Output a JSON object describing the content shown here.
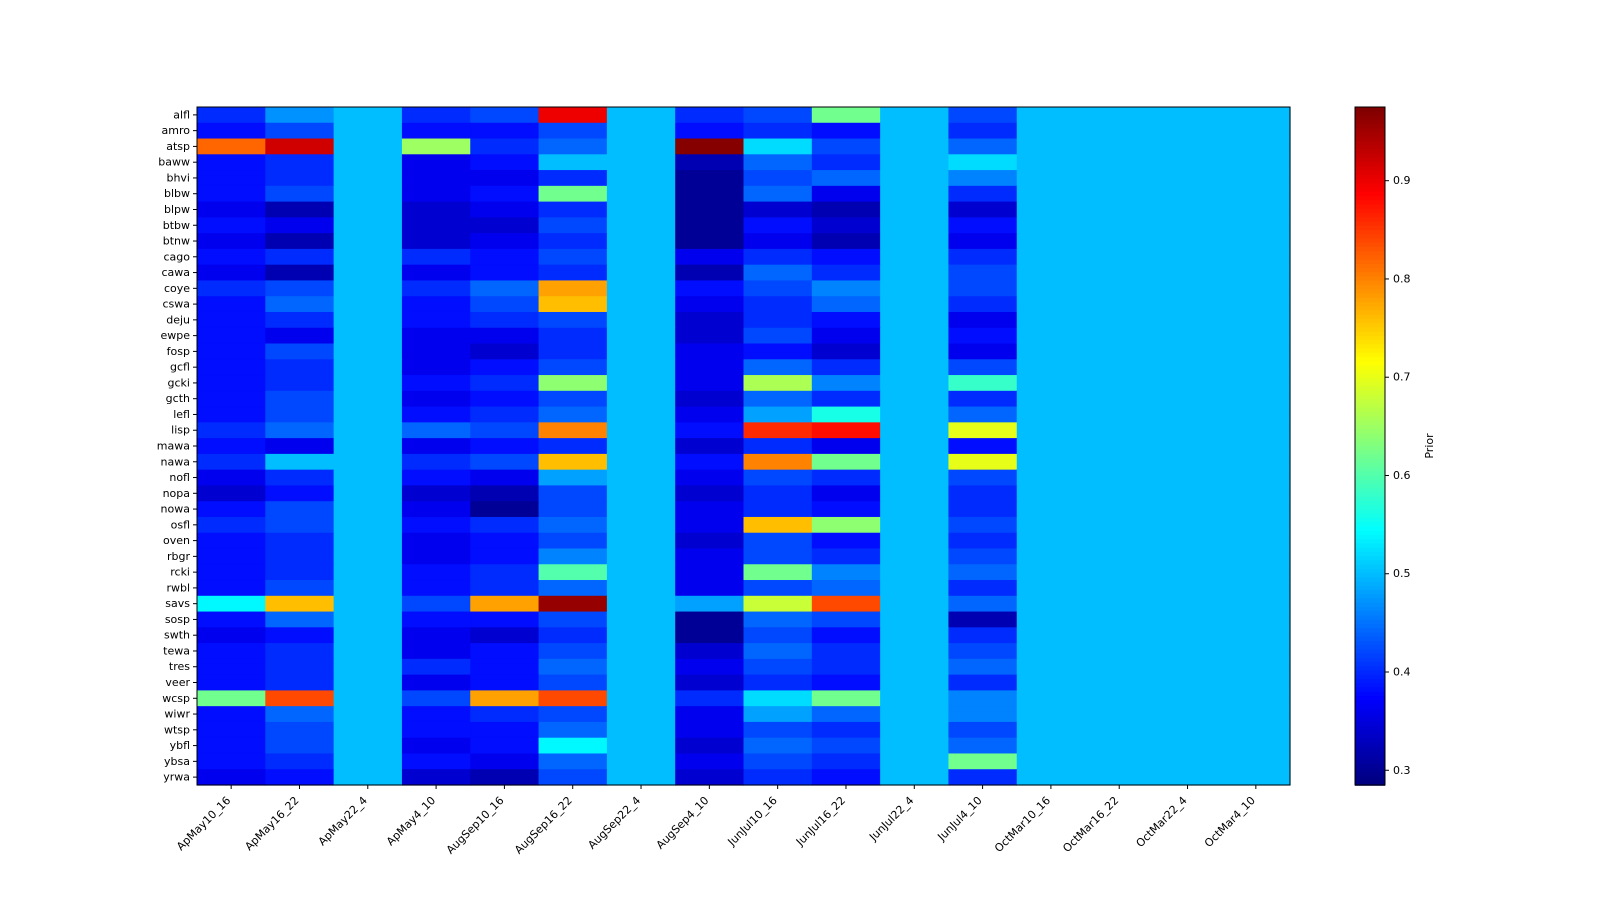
{
  "figure": {
    "background": "#ffffff"
  },
  "chart_data": {
    "type": "heatmap",
    "colormap": "jet",
    "title": "",
    "xlabel": "",
    "ylabel": "",
    "colorbar": {
      "label": "Prior",
      "ticks": [
        0.3,
        0.4,
        0.5,
        0.6,
        0.7,
        0.8,
        0.9
      ]
    },
    "vmin": 0.285,
    "vmax": 0.975,
    "x_labels": [
      "ApMay10_16",
      "ApMay16_22",
      "ApMay22_4",
      "ApMay4_10",
      "AugSep10_16",
      "AugSep16_22",
      "AugSep22_4",
      "AugSep4_10",
      "JunJul10_16",
      "JunJul16_22",
      "JunJul22_4",
      "JunJul4_10",
      "OctMar10_16",
      "OctMar16_22",
      "OctMar22_4",
      "OctMar4_10"
    ],
    "y_labels": [
      "alfl",
      "amro",
      "atsp",
      "baww",
      "bhvi",
      "blbw",
      "blpw",
      "btbw",
      "btnw",
      "cago",
      "cawa",
      "coye",
      "cswa",
      "deju",
      "ewpe",
      "fosp",
      "gcfl",
      "gcki",
      "gcth",
      "lefl",
      "lisp",
      "mawa",
      "nawa",
      "nofl",
      "nopa",
      "nowa",
      "osfl",
      "oven",
      "rbgr",
      "rcki",
      "rwbl",
      "savs",
      "sosp",
      "swth",
      "tewa",
      "tres",
      "veer",
      "wcsp",
      "wiwr",
      "wtsp",
      "ybfl",
      "ybsa",
      "yrwa"
    ],
    "values": [
      [
        0.4,
        0.47,
        0.5,
        0.4,
        0.42,
        0.9,
        0.5,
        0.4,
        0.42,
        0.62,
        0.5,
        0.42,
        0.5,
        0.5,
        0.5,
        0.5
      ],
      [
        0.38,
        0.42,
        0.5,
        0.38,
        0.38,
        0.42,
        0.5,
        0.38,
        0.4,
        0.38,
        0.5,
        0.4,
        0.5,
        0.5,
        0.5,
        0.5
      ],
      [
        0.82,
        0.92,
        0.5,
        0.65,
        0.4,
        0.44,
        0.5,
        0.97,
        0.52,
        0.42,
        0.5,
        0.44,
        0.5,
        0.5,
        0.5,
        0.5
      ],
      [
        0.38,
        0.4,
        0.5,
        0.36,
        0.38,
        0.5,
        0.5,
        0.32,
        0.44,
        0.4,
        0.5,
        0.52,
        0.5,
        0.5,
        0.5,
        0.5
      ],
      [
        0.38,
        0.4,
        0.5,
        0.36,
        0.36,
        0.4,
        0.5,
        0.3,
        0.42,
        0.44,
        0.5,
        0.46,
        0.5,
        0.5,
        0.5,
        0.5
      ],
      [
        0.38,
        0.42,
        0.5,
        0.36,
        0.38,
        0.62,
        0.5,
        0.3,
        0.44,
        0.36,
        0.5,
        0.4,
        0.5,
        0.5,
        0.5,
        0.5
      ],
      [
        0.36,
        0.32,
        0.5,
        0.34,
        0.36,
        0.4,
        0.5,
        0.3,
        0.34,
        0.32,
        0.5,
        0.34,
        0.5,
        0.5,
        0.5,
        0.5
      ],
      [
        0.38,
        0.36,
        0.5,
        0.34,
        0.34,
        0.42,
        0.5,
        0.3,
        0.38,
        0.34,
        0.5,
        0.38,
        0.5,
        0.5,
        0.5,
        0.5
      ],
      [
        0.36,
        0.32,
        0.5,
        0.34,
        0.36,
        0.4,
        0.5,
        0.3,
        0.36,
        0.32,
        0.5,
        0.36,
        0.5,
        0.5,
        0.5,
        0.5
      ],
      [
        0.38,
        0.4,
        0.5,
        0.4,
        0.38,
        0.42,
        0.5,
        0.36,
        0.4,
        0.38,
        0.5,
        0.4,
        0.5,
        0.5,
        0.5,
        0.5
      ],
      [
        0.36,
        0.32,
        0.5,
        0.36,
        0.38,
        0.4,
        0.5,
        0.32,
        0.44,
        0.4,
        0.5,
        0.42,
        0.5,
        0.5,
        0.5,
        0.5
      ],
      [
        0.4,
        0.42,
        0.5,
        0.4,
        0.44,
        0.78,
        0.5,
        0.38,
        0.42,
        0.46,
        0.5,
        0.42,
        0.5,
        0.5,
        0.5,
        0.5
      ],
      [
        0.38,
        0.44,
        0.5,
        0.38,
        0.42,
        0.76,
        0.5,
        0.36,
        0.4,
        0.44,
        0.5,
        0.4,
        0.5,
        0.5,
        0.5,
        0.5
      ],
      [
        0.38,
        0.4,
        0.5,
        0.38,
        0.4,
        0.42,
        0.5,
        0.34,
        0.4,
        0.38,
        0.5,
        0.36,
        0.5,
        0.5,
        0.5,
        0.5
      ],
      [
        0.38,
        0.36,
        0.5,
        0.36,
        0.36,
        0.4,
        0.5,
        0.34,
        0.42,
        0.36,
        0.5,
        0.38,
        0.5,
        0.5,
        0.5,
        0.5
      ],
      [
        0.38,
        0.42,
        0.5,
        0.36,
        0.34,
        0.4,
        0.5,
        0.36,
        0.38,
        0.34,
        0.5,
        0.36,
        0.5,
        0.5,
        0.5,
        0.5
      ],
      [
        0.38,
        0.4,
        0.5,
        0.36,
        0.38,
        0.42,
        0.5,
        0.36,
        0.44,
        0.4,
        0.5,
        0.42,
        0.5,
        0.5,
        0.5,
        0.5
      ],
      [
        0.38,
        0.4,
        0.5,
        0.38,
        0.4,
        0.64,
        0.5,
        0.36,
        0.66,
        0.46,
        0.5,
        0.58,
        0.5,
        0.5,
        0.5,
        0.5
      ],
      [
        0.38,
        0.42,
        0.5,
        0.36,
        0.38,
        0.42,
        0.5,
        0.34,
        0.44,
        0.4,
        0.5,
        0.4,
        0.5,
        0.5,
        0.5,
        0.5
      ],
      [
        0.38,
        0.42,
        0.5,
        0.38,
        0.4,
        0.44,
        0.5,
        0.36,
        0.48,
        0.56,
        0.5,
        0.44,
        0.5,
        0.5,
        0.5,
        0.5
      ],
      [
        0.4,
        0.44,
        0.5,
        0.44,
        0.42,
        0.8,
        0.5,
        0.38,
        0.86,
        0.88,
        0.5,
        0.7,
        0.5,
        0.5,
        0.5,
        0.5
      ],
      [
        0.38,
        0.36,
        0.5,
        0.36,
        0.38,
        0.4,
        0.5,
        0.34,
        0.4,
        0.36,
        0.5,
        0.38,
        0.5,
        0.5,
        0.5,
        0.5
      ],
      [
        0.4,
        0.5,
        0.5,
        0.4,
        0.42,
        0.76,
        0.5,
        0.38,
        0.8,
        0.62,
        0.5,
        0.7,
        0.5,
        0.5,
        0.5,
        0.5
      ],
      [
        0.36,
        0.4,
        0.5,
        0.38,
        0.36,
        0.48,
        0.5,
        0.36,
        0.42,
        0.4,
        0.5,
        0.42,
        0.5,
        0.5,
        0.5,
        0.5
      ],
      [
        0.34,
        0.38,
        0.5,
        0.34,
        0.32,
        0.42,
        0.5,
        0.34,
        0.4,
        0.36,
        0.5,
        0.4,
        0.5,
        0.5,
        0.5,
        0.5
      ],
      [
        0.38,
        0.42,
        0.5,
        0.36,
        0.3,
        0.42,
        0.5,
        0.36,
        0.4,
        0.38,
        0.5,
        0.4,
        0.5,
        0.5,
        0.5,
        0.5
      ],
      [
        0.4,
        0.42,
        0.5,
        0.38,
        0.4,
        0.44,
        0.5,
        0.36,
        0.76,
        0.64,
        0.5,
        0.42,
        0.5,
        0.5,
        0.5,
        0.5
      ],
      [
        0.38,
        0.4,
        0.5,
        0.36,
        0.38,
        0.42,
        0.5,
        0.34,
        0.42,
        0.38,
        0.5,
        0.4,
        0.5,
        0.5,
        0.5,
        0.5
      ],
      [
        0.38,
        0.4,
        0.5,
        0.36,
        0.38,
        0.46,
        0.5,
        0.36,
        0.42,
        0.4,
        0.5,
        0.42,
        0.5,
        0.5,
        0.5,
        0.5
      ],
      [
        0.38,
        0.4,
        0.5,
        0.38,
        0.4,
        0.6,
        0.5,
        0.36,
        0.62,
        0.46,
        0.5,
        0.44,
        0.5,
        0.5,
        0.5,
        0.5
      ],
      [
        0.38,
        0.42,
        0.5,
        0.38,
        0.4,
        0.44,
        0.5,
        0.36,
        0.42,
        0.44,
        0.5,
        0.4,
        0.5,
        0.5,
        0.5,
        0.5
      ],
      [
        0.54,
        0.76,
        0.5,
        0.42,
        0.78,
        0.96,
        0.5,
        0.48,
        0.68,
        0.84,
        0.5,
        0.44,
        0.5,
        0.5,
        0.5,
        0.5
      ],
      [
        0.38,
        0.44,
        0.5,
        0.38,
        0.38,
        0.42,
        0.5,
        0.3,
        0.44,
        0.42,
        0.5,
        0.32,
        0.5,
        0.5,
        0.5,
        0.5
      ],
      [
        0.36,
        0.38,
        0.5,
        0.36,
        0.34,
        0.4,
        0.5,
        0.3,
        0.42,
        0.38,
        0.5,
        0.4,
        0.5,
        0.5,
        0.5,
        0.5
      ],
      [
        0.38,
        0.4,
        0.5,
        0.36,
        0.38,
        0.42,
        0.5,
        0.34,
        0.44,
        0.4,
        0.5,
        0.42,
        0.5,
        0.5,
        0.5,
        0.5
      ],
      [
        0.38,
        0.4,
        0.5,
        0.4,
        0.38,
        0.44,
        0.5,
        0.36,
        0.42,
        0.4,
        0.5,
        0.44,
        0.5,
        0.5,
        0.5,
        0.5
      ],
      [
        0.38,
        0.4,
        0.5,
        0.36,
        0.38,
        0.42,
        0.5,
        0.34,
        0.4,
        0.38,
        0.5,
        0.4,
        0.5,
        0.5,
        0.5,
        0.5
      ],
      [
        0.62,
        0.84,
        0.5,
        0.42,
        0.78,
        0.84,
        0.5,
        0.4,
        0.52,
        0.62,
        0.5,
        0.46,
        0.5,
        0.5,
        0.5,
        0.5
      ],
      [
        0.38,
        0.44,
        0.5,
        0.38,
        0.4,
        0.42,
        0.5,
        0.36,
        0.48,
        0.44,
        0.5,
        0.46,
        0.5,
        0.5,
        0.5,
        0.5
      ],
      [
        0.38,
        0.42,
        0.5,
        0.38,
        0.38,
        0.44,
        0.5,
        0.36,
        0.42,
        0.4,
        0.5,
        0.42,
        0.5,
        0.5,
        0.5,
        0.5
      ],
      [
        0.38,
        0.42,
        0.5,
        0.36,
        0.38,
        0.54,
        0.5,
        0.34,
        0.44,
        0.42,
        0.5,
        0.44,
        0.5,
        0.5,
        0.5,
        0.5
      ],
      [
        0.38,
        0.4,
        0.5,
        0.38,
        0.36,
        0.44,
        0.5,
        0.36,
        0.42,
        0.4,
        0.5,
        0.62,
        0.5,
        0.5,
        0.5,
        0.5
      ],
      [
        0.36,
        0.38,
        0.5,
        0.34,
        0.32,
        0.42,
        0.5,
        0.34,
        0.4,
        0.38,
        0.5,
        0.4,
        0.5,
        0.5,
        0.5,
        0.5
      ]
    ]
  }
}
